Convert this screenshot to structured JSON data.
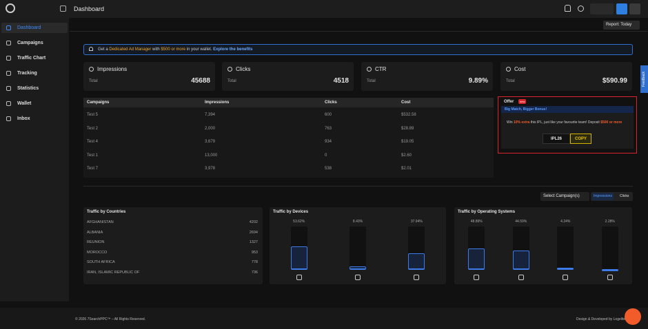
{
  "header": {
    "title": "Dashboard"
  },
  "sidebar": {
    "items": [
      "Dashboard",
      "Campaigns",
      "Traffic Chart",
      "Tracking",
      "Statistics",
      "Wallet",
      "Inbox"
    ]
  },
  "toolbar": {
    "report": "Report: Today"
  },
  "banner": {
    "parts": [
      "Get a ",
      "Dedicated Ad Manager",
      " with ",
      "$500 or more",
      " in your wallet. ",
      "Explore the benefits"
    ]
  },
  "stats": [
    {
      "label": "Impressions",
      "sublabel": "Total",
      "value": "45688"
    },
    {
      "label": "Clicks",
      "sublabel": "Total",
      "value": "4518"
    },
    {
      "label": "CTR",
      "sublabel": "Total",
      "value": "9.89%"
    },
    {
      "label": "Cost",
      "sublabel": "Total",
      "value": "$590.99"
    }
  ],
  "campaign_table": {
    "columns": [
      "Campaigns",
      "Impressions",
      "Clicks",
      "Cost"
    ],
    "rows": [
      [
        "Test 5",
        "7,394",
        "600",
        "$532.58"
      ],
      [
        "Test 2",
        "2,000",
        "763",
        "$28.89"
      ],
      [
        "Test 4",
        "3,679",
        "934",
        "$19.05"
      ],
      [
        "Test 1",
        "13,000",
        "0",
        "$2.60"
      ],
      [
        "Test 7",
        "3,978",
        "538",
        "$2.01"
      ]
    ]
  },
  "offer": {
    "title": "Offer",
    "badge": "new",
    "headline": "Big Match, Bigger Bonus!",
    "text": [
      "Win ",
      "10% extra",
      " this IPL, just like your favourite team! Deposit ",
      "$500 or more"
    ],
    "code": "IPL26",
    "button": "COPY"
  },
  "filters": {
    "select": "Select Campaign(s)",
    "toggle": [
      "Impressions",
      "Clicks"
    ]
  },
  "countries": {
    "title": "Traffic by Countries",
    "rows": [
      [
        "AFGHANISTAN",
        "4202"
      ],
      [
        "ALBANIA",
        "2694"
      ],
      [
        "REUNION",
        "1327"
      ],
      [
        "MOROCCO",
        "953"
      ],
      [
        "SOUTH AFRICA",
        "778"
      ],
      [
        "IRAN, ISLAMIC REPUBLIC OF",
        "736"
      ]
    ]
  },
  "devices": {
    "title": "Traffic by Devices",
    "values": [
      53.62,
      8.43,
      37.94
    ],
    "labels": [
      "53.62%",
      "8.43%",
      "37.94%"
    ]
  },
  "os": {
    "title": "Traffic by Operating Systems",
    "values": [
      48.89,
      44.59,
      4.24,
      2.28
    ],
    "labels": [
      "48.89%",
      "44.59%",
      "4.24%",
      "2.28%"
    ]
  },
  "feedback": "Feedback",
  "footer": {
    "copyright": "© 2026 7SearchPPC™ – All Rights Reserved.",
    "credit": "Design & Developed by Logelite"
  }
}
